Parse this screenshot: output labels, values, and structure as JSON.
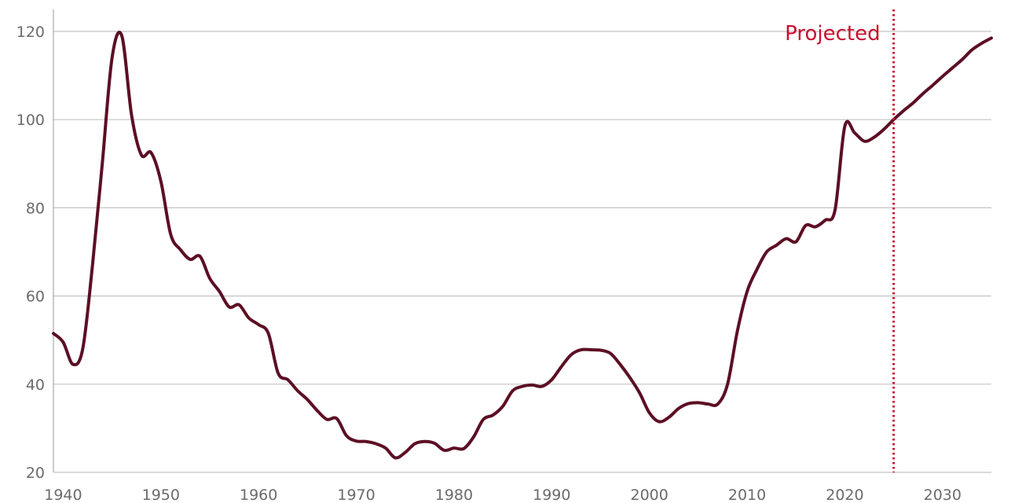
{
  "chart_data": {
    "type": "line",
    "title": "",
    "xlabel": "",
    "ylabel": "",
    "xlim": [
      1939,
      2035
    ],
    "ylim": [
      20,
      120
    ],
    "x_ticks": [
      1940,
      1950,
      1960,
      1970,
      1980,
      1990,
      2000,
      2010,
      2020,
      2030
    ],
    "y_ticks": [
      20,
      40,
      60,
      80,
      100,
      120
    ],
    "grid": "horizontal",
    "series": [
      {
        "color": "#5c0f24",
        "points": [
          [
            1939,
            51.5
          ],
          [
            1940,
            49.5
          ],
          [
            1941,
            44.5
          ],
          [
            1942,
            48
          ],
          [
            1943,
            67
          ],
          [
            1944,
            90
          ],
          [
            1945,
            114
          ],
          [
            1946,
            119
          ],
          [
            1947,
            101
          ],
          [
            1948,
            92
          ],
          [
            1949,
            92.5
          ],
          [
            1950,
            86
          ],
          [
            1951,
            74
          ],
          [
            1952,
            70.5
          ],
          [
            1953,
            68.3
          ],
          [
            1954,
            69
          ],
          [
            1955,
            64
          ],
          [
            1956,
            61
          ],
          [
            1957,
            57.5
          ],
          [
            1958,
            58
          ],
          [
            1959,
            55
          ],
          [
            1960,
            53.5
          ],
          [
            1961,
            51.5
          ],
          [
            1962,
            42.5
          ],
          [
            1963,
            41
          ],
          [
            1964,
            38.5
          ],
          [
            1965,
            36.5
          ],
          [
            1966,
            34
          ],
          [
            1967,
            32
          ],
          [
            1968,
            32.2
          ],
          [
            1969,
            28.3
          ],
          [
            1970,
            27.1
          ],
          [
            1971,
            27
          ],
          [
            1972,
            26.5
          ],
          [
            1973,
            25.5
          ],
          [
            1974,
            23.3
          ],
          [
            1975,
            24.5
          ],
          [
            1976,
            26.5
          ],
          [
            1977,
            27
          ],
          [
            1978,
            26.6
          ],
          [
            1979,
            25
          ],
          [
            1980,
            25.5
          ],
          [
            1981,
            25.4
          ],
          [
            1982,
            28
          ],
          [
            1983,
            32
          ],
          [
            1984,
            33
          ],
          [
            1985,
            35
          ],
          [
            1986,
            38.5
          ],
          [
            1987,
            39.5
          ],
          [
            1988,
            39.8
          ],
          [
            1989,
            39.5
          ],
          [
            1990,
            41
          ],
          [
            1991,
            44
          ],
          [
            1992,
            46.7
          ],
          [
            1993,
            47.8
          ],
          [
            1994,
            47.8
          ],
          [
            1995,
            47.7
          ],
          [
            1996,
            47
          ],
          [
            1997,
            44.5
          ],
          [
            1998,
            41.5
          ],
          [
            1999,
            38
          ],
          [
            2000,
            33.5
          ],
          [
            2001,
            31.5
          ],
          [
            2002,
            32.5
          ],
          [
            2003,
            34.5
          ],
          [
            2004,
            35.6
          ],
          [
            2005,
            35.8
          ],
          [
            2006,
            35.5
          ],
          [
            2007,
            35.5
          ],
          [
            2008,
            40
          ],
          [
            2009,
            52
          ],
          [
            2010,
            61
          ],
          [
            2011,
            66
          ],
          [
            2012,
            70
          ],
          [
            2013,
            71.5
          ],
          [
            2014,
            73
          ],
          [
            2015,
            72.3
          ],
          [
            2016,
            76
          ],
          [
            2017,
            75.7
          ],
          [
            2018,
            77.2
          ],
          [
            2019,
            79.5
          ],
          [
            2020,
            98.5
          ],
          [
            2021,
            97
          ],
          [
            2022,
            95.1
          ],
          [
            2023,
            96
          ],
          [
            2024,
            97.8
          ],
          [
            2025,
            100
          ],
          [
            2026,
            102
          ],
          [
            2027,
            103.8
          ],
          [
            2028,
            105.9
          ],
          [
            2029,
            107.8
          ],
          [
            2030,
            109.8
          ],
          [
            2031,
            111.7
          ],
          [
            2032,
            113.6
          ],
          [
            2033,
            115.8
          ],
          [
            2034,
            117.3
          ],
          [
            2035,
            118.5
          ]
        ]
      }
    ],
    "annotations": [
      {
        "type": "vertical-line",
        "x": 2025,
        "style": "dotted",
        "color": "#c8102e",
        "label": "Projected"
      }
    ]
  }
}
